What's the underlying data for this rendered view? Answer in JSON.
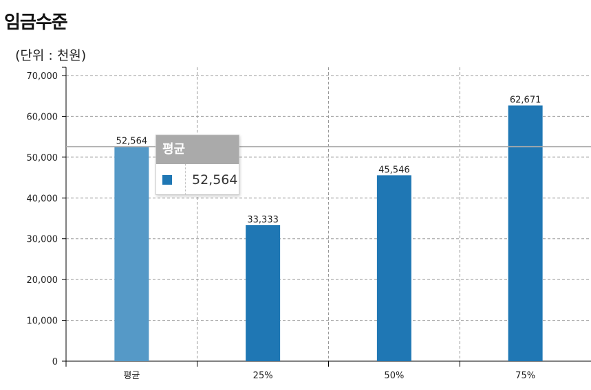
{
  "page": {
    "title": "임금수준",
    "unit": "(단위 : 천원)"
  },
  "colors": {
    "bar": "#1f77b4",
    "bar_highlight": "#5599c7",
    "reference_line": "#aaaaaa",
    "grid": "#999999"
  },
  "tooltip": {
    "title": "평균",
    "value": "52,564"
  },
  "chart_data": {
    "type": "bar",
    "categories": [
      "평균",
      "25%",
      "50%",
      "75%"
    ],
    "values": [
      52564,
      33333,
      45546,
      62671
    ],
    "data_labels": [
      "52,564",
      "33,333",
      "45,546",
      "62,671"
    ],
    "highlighted_category": "평균",
    "ylim": [
      0,
      70000
    ],
    "y_ticks": [
      0,
      10000,
      20000,
      30000,
      40000,
      50000,
      60000,
      70000
    ],
    "y_tick_labels": [
      "0",
      "10,000",
      "20,000",
      "30,000",
      "40,000",
      "50,000",
      "60,000",
      "70,000"
    ],
    "reference_line": 52564,
    "grid": true,
    "title": "",
    "xlabel": "",
    "ylabel": ""
  }
}
